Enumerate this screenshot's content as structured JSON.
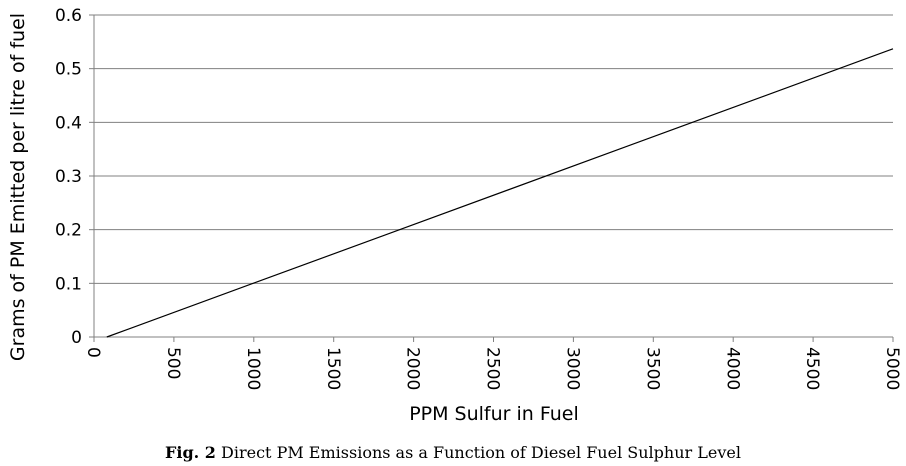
{
  "caption": {
    "label": "Fig. 2",
    "text": "Direct PM Emissions as a Function of Diesel Fuel Sulphur Level"
  },
  "chart_data": {
    "type": "line",
    "title": "",
    "xlabel": "PPM Sulfur in Fuel",
    "ylabel": "Grams of PM Emitted per litre of fuel",
    "xlim": [
      0,
      5000
    ],
    "ylim": [
      0,
      0.6
    ],
    "xticks": [
      0,
      500,
      1000,
      1500,
      2000,
      2500,
      3000,
      3500,
      4000,
      4500,
      5000
    ],
    "yticks": [
      0,
      0.1,
      0.2,
      0.3,
      0.4,
      0.5,
      0.6
    ],
    "xtick_labels": [
      "0",
      "500",
      "1000",
      "1500",
      "2000",
      "2500",
      "3000",
      "3500",
      "4000",
      "4500",
      "5000"
    ],
    "ytick_labels": [
      "0",
      "0.1",
      "0.2",
      "0.3",
      "0.4",
      "0.5",
      "0.6"
    ],
    "grid": "horizontal",
    "legend": "none",
    "colors": {
      "line": "#000000",
      "grid": "#808080",
      "axis": "#808080"
    },
    "series": [
      {
        "x": [
          80,
          5000
        ],
        "y": [
          0,
          0.537
        ]
      }
    ]
  }
}
